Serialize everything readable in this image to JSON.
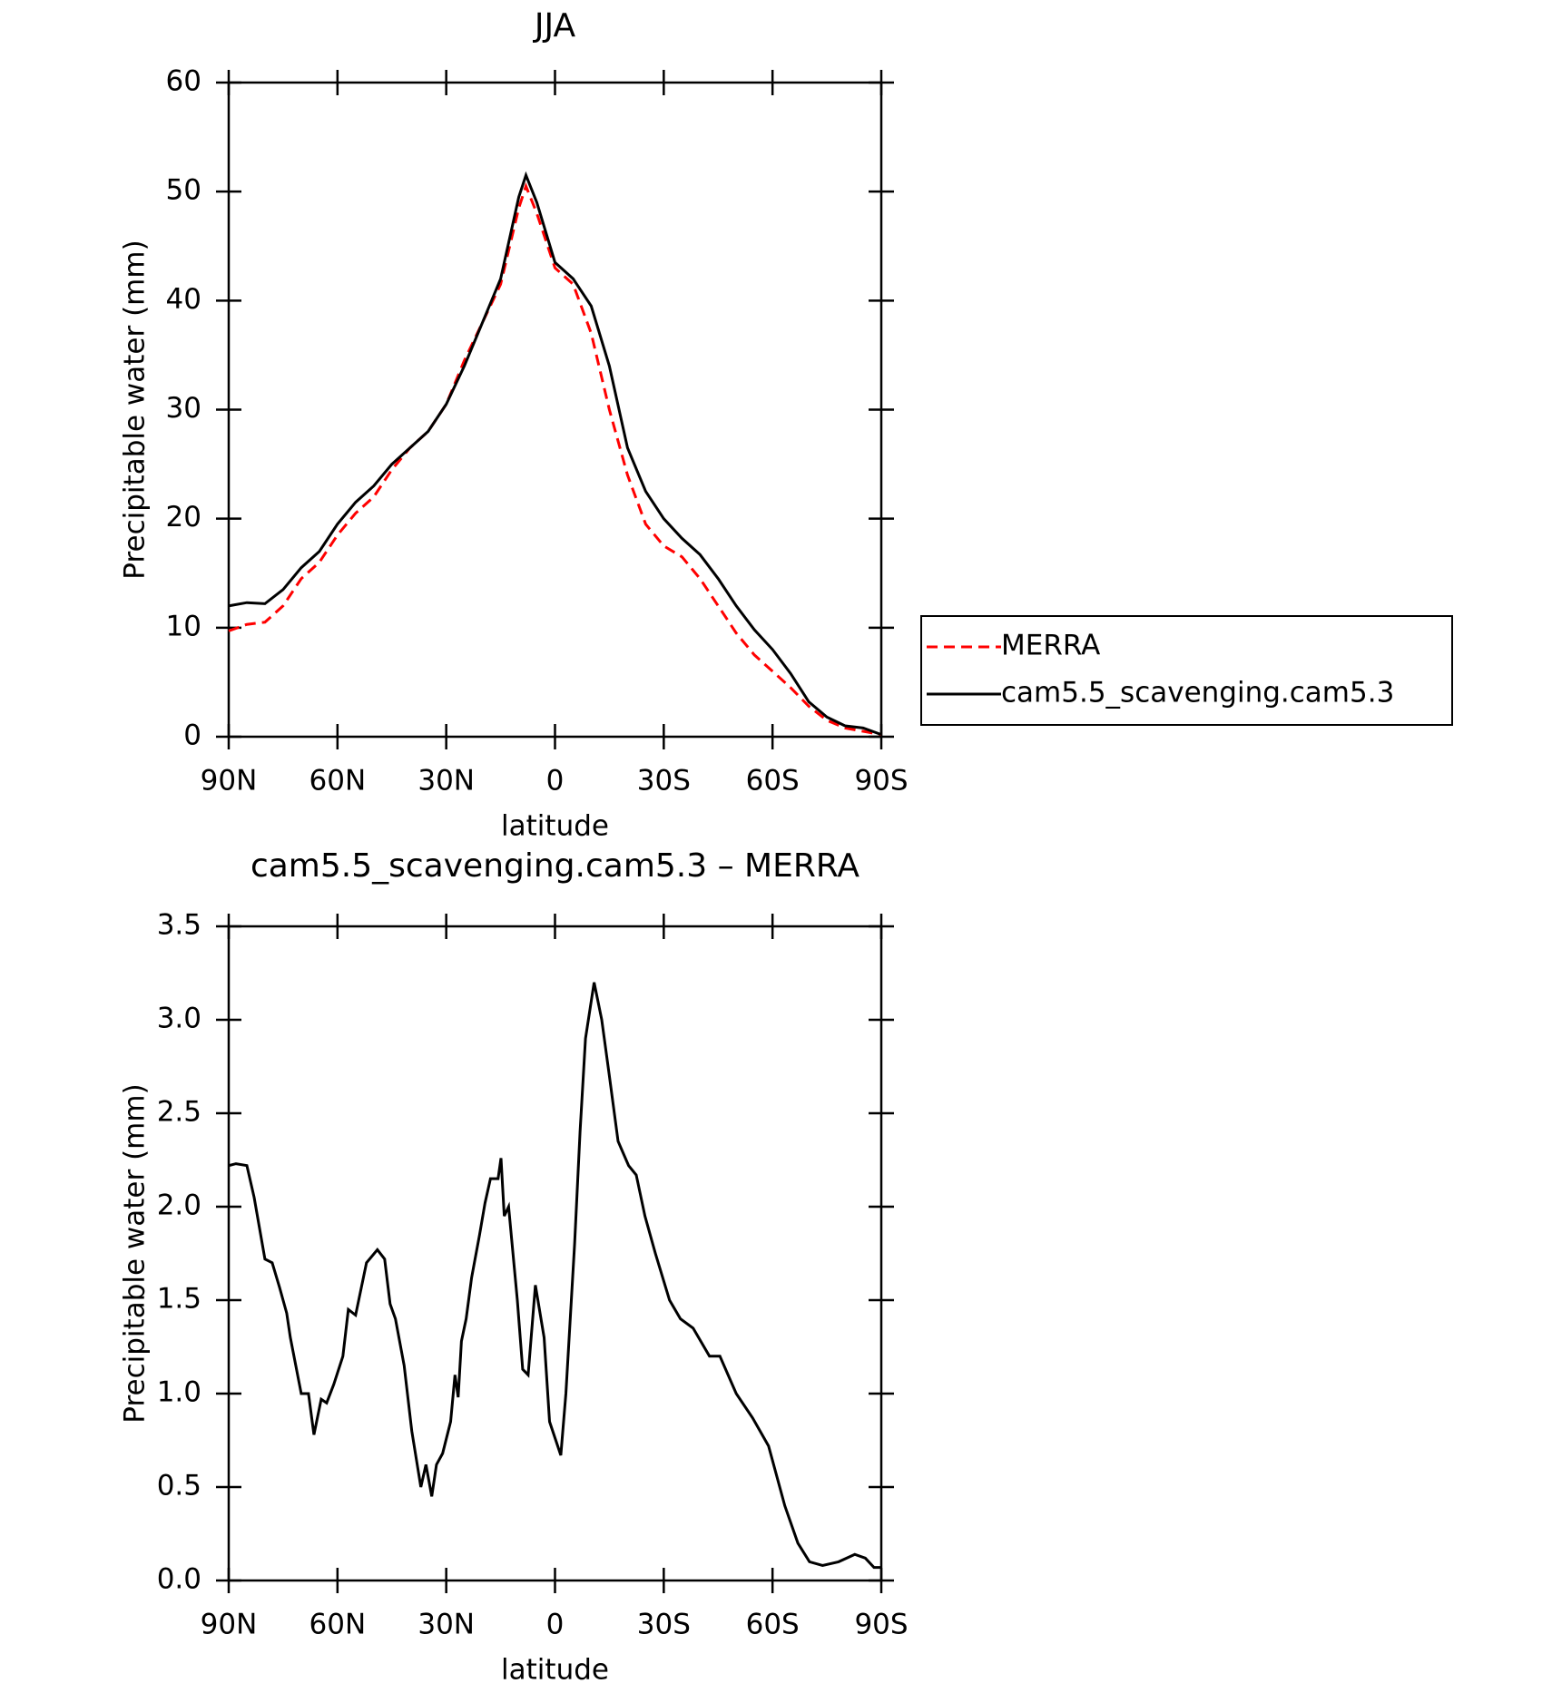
{
  "chart_data": [
    {
      "type": "line",
      "title": "JJA",
      "xlabel": "latitude",
      "ylabel": "Precipitable water (mm)",
      "x": [
        90,
        85,
        80,
        75,
        70,
        65,
        60,
        55,
        50,
        45,
        40,
        35,
        30,
        25,
        20,
        15,
        10,
        8,
        5,
        0,
        -5,
        -10,
        -15,
        -20,
        -25,
        -30,
        -35,
        -40,
        -45,
        -50,
        -55,
        -60,
        -65,
        -70,
        -75,
        -80,
        -85,
        -90
      ],
      "series": [
        {
          "name": "MERRA",
          "color": "#ff0000",
          "linestyle": "dashed",
          "values": [
            9.7,
            10.3,
            10.5,
            12,
            14.5,
            16,
            18.5,
            20.5,
            22,
            24.5,
            26.5,
            28,
            30.5,
            34.5,
            38,
            41.5,
            48.5,
            50.5,
            48,
            43,
            41.5,
            37,
            30,
            24,
            19.5,
            17.5,
            16.5,
            14.5,
            12,
            9.5,
            7.5,
            6,
            4.5,
            2.8,
            1.5,
            0.8,
            0.5,
            0.2
          ]
        },
        {
          "name": "cam5.5_scavenging.cam5.3",
          "color": "#000000",
          "linestyle": "solid",
          "values": [
            12,
            12.3,
            12.2,
            13.5,
            15.5,
            17,
            19.5,
            21.5,
            23,
            25,
            26.5,
            28,
            30.5,
            34,
            38,
            42,
            49.5,
            51.5,
            49,
            43.5,
            42,
            39.5,
            34,
            26.5,
            22.5,
            20,
            18.2,
            16.7,
            14.5,
            12,
            9.8,
            8,
            5.8,
            3.2,
            1.8,
            1,
            0.8,
            0.2
          ]
        }
      ],
      "xlim": [
        90,
        -90
      ],
      "xticks": [
        {
          "value": 90,
          "label": "90N"
        },
        {
          "value": 60,
          "label": "60N"
        },
        {
          "value": 30,
          "label": "30N"
        },
        0,
        {
          "value": -30,
          "label": "30S"
        },
        {
          "value": -60,
          "label": "60S"
        },
        {
          "value": -90,
          "label": "90S"
        }
      ],
      "ylim": [
        0,
        60
      ],
      "yticks": [
        0,
        10,
        20,
        30,
        40,
        50,
        60
      ],
      "grid": false,
      "legend": "outside-right"
    },
    {
      "type": "line",
      "title": "cam5.5_scavenging.cam5.3 – MERRA",
      "xlabel": "latitude",
      "ylabel": "Precipitable water (mm)",
      "x": [
        90,
        88,
        85,
        83,
        80,
        78,
        76,
        74,
        73,
        70,
        68,
        66.5,
        64.5,
        63,
        61,
        58.5,
        57,
        55,
        52,
        49,
        47,
        45.5,
        44,
        41.6,
        39.5,
        37,
        35.6,
        34,
        32.7,
        31,
        28.8,
        27.6,
        26.7,
        25.8,
        24.5,
        23,
        20.8,
        19.3,
        17.8,
        15.7,
        14.9,
        14,
        12.8,
        10.4,
        8.9,
        7.4,
        5.4,
        3,
        1.5,
        -1.6,
        -3,
        -5.4,
        -6.9,
        -8.4,
        -10.8,
        -12.9,
        -15,
        -17.4,
        -20.3,
        -22.4,
        -24.8,
        -27.7,
        -31.6,
        -34.6,
        -38.1,
        -42.6,
        -45.5,
        -50,
        -54.5,
        -58.9,
        -63.4,
        -67,
        -70.2,
        -73.8,
        -78.2,
        -82.7,
        -85.6,
        -88,
        -90
      ],
      "series": [
        {
          "name": "cam5.5_scavenging.cam5.3 – MERRA",
          "color": "#000000",
          "linestyle": "solid",
          "values": [
            2.22,
            2.23,
            2.22,
            2.05,
            1.72,
            1.7,
            1.57,
            1.43,
            1.3,
            1,
            1,
            0.78,
            0.97,
            0.95,
            1.05,
            1.2,
            1.45,
            1.42,
            1.7,
            1.77,
            1.72,
            1.48,
            1.4,
            1.15,
            0.8,
            0.5,
            0.62,
            0.45,
            0.62,
            0.68,
            0.85,
            1.1,
            0.98,
            1.28,
            1.4,
            1.62,
            1.85,
            2.02,
            2.15,
            2.15,
            2.26,
            1.95,
            2,
            1.5,
            1.13,
            1.1,
            1.58,
            1.3,
            0.85,
            0.67,
            1,
            1.8,
            2.4,
            2.9,
            3.2,
            3,
            2.7,
            2.35,
            2.22,
            2.17,
            1.95,
            1.75,
            1.5,
            1.4,
            1.35,
            1.2,
            1.2,
            1,
            0.87,
            0.72,
            0.4,
            0.2,
            0.1,
            0.08,
            0.1,
            0.14,
            0.12,
            0.07,
            0.07
          ]
        }
      ],
      "xlim": [
        90,
        -90
      ],
      "xticks": [
        {
          "value": 90,
          "label": "90N"
        },
        {
          "value": 60,
          "label": "60N"
        },
        {
          "value": 30,
          "label": "30N"
        },
        0,
        {
          "value": -30,
          "label": "30S"
        },
        {
          "value": -60,
          "label": "60S"
        },
        {
          "value": -90,
          "label": "90S"
        }
      ],
      "ylim": [
        0,
        3.5
      ],
      "yticks": [
        {
          "value": 0,
          "label": "0.0"
        },
        0.5,
        {
          "value": 1,
          "label": "1.0"
        },
        1.5,
        {
          "value": 2,
          "label": "2.0"
        },
        2.5,
        {
          "value": 3,
          "label": "3.0"
        },
        3.5
      ],
      "grid": false,
      "legend": "none"
    }
  ]
}
